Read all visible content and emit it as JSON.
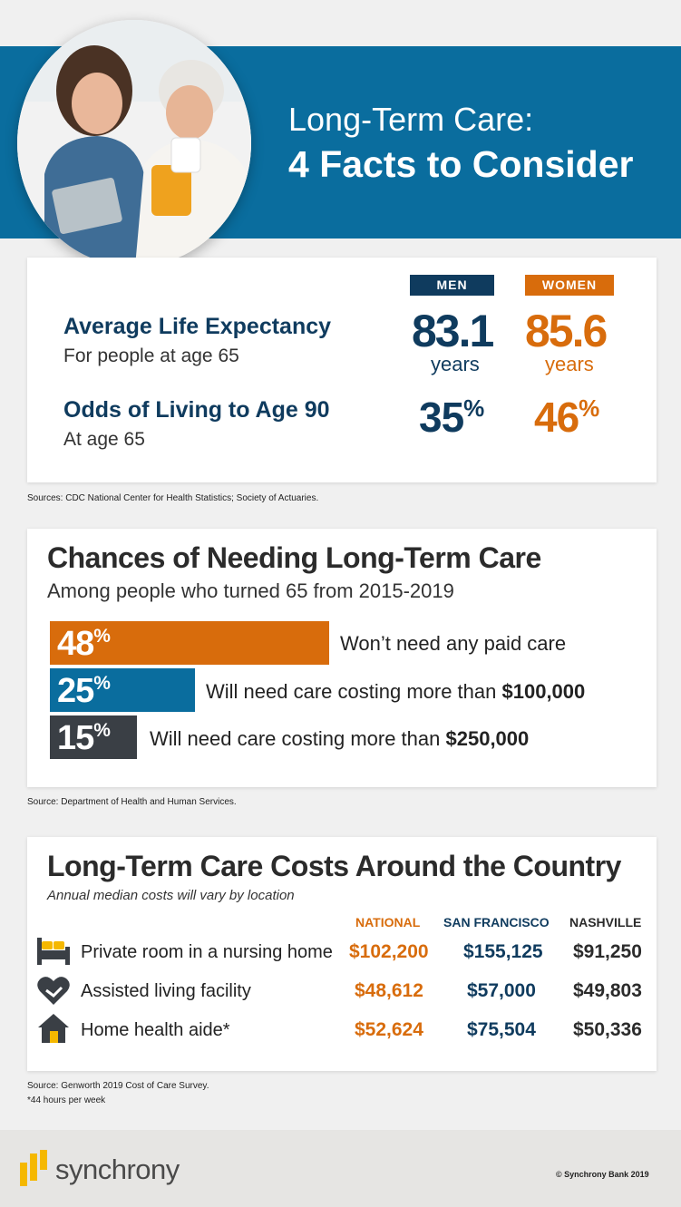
{
  "header": {
    "title_line1": "Long-Term Care:",
    "title_line2": "4 Facts to Consider"
  },
  "life": {
    "men_label": "MEN",
    "women_label": "WOMEN",
    "expectancy_title": "Average Life Expectancy",
    "expectancy_sub": "For people at age 65",
    "men_expectancy": "83.1",
    "women_expectancy": "85.6",
    "years_label": "years",
    "odds_title": "Odds of Living to Age 90",
    "odds_sub": "At age 65",
    "men_odds": "35",
    "women_odds": "46",
    "percent_sign": "%",
    "source": "Sources: CDC National Center for Health Statistics; Society of Actuaries."
  },
  "chances": {
    "title": "Chances of Needing Long-Term Care",
    "subtitle": "Among people who turned 65 from 2015-2019",
    "bars": [
      {
        "value": "48",
        "text": "Won’t need any paid care",
        "amount": "",
        "color": "#d86c0c"
      },
      {
        "value": "25",
        "text": "Will need care costing more than ",
        "amount": "$100,000",
        "color": "#0a6d9e"
      },
      {
        "value": "15",
        "text": "Will need care costing more than ",
        "amount": "$250,000",
        "color": "#3a3f45"
      }
    ],
    "source": "Source: Department of Health and Human Services."
  },
  "costs": {
    "title": "Long-Term Care Costs Around the Country",
    "subtitle": "Annual median costs will vary by location",
    "columns": [
      "NATIONAL",
      "SAN FRANCISCO",
      "NASHVILLE"
    ],
    "rows": [
      {
        "icon": "bed-icon",
        "label": "Private room in a nursing home",
        "national": "$102,200",
        "sf": "$155,125",
        "nashville": "$91,250"
      },
      {
        "icon": "heart-hands-icon",
        "label": "Assisted living facility",
        "national": "$48,612",
        "sf": "$57,000",
        "nashville": "$49,803"
      },
      {
        "icon": "house-icon",
        "label": "Home health aide*",
        "national": "$52,624",
        "sf": "$75,504",
        "nashville": "$50,336"
      }
    ],
    "source": "Source: Genworth 2019 Cost of Care Survey.",
    "footnote": "*44 hours per week"
  },
  "footer": {
    "logo": "synchrony",
    "copyright": "© Synchrony Bank 2019"
  },
  "colors": {
    "brand_blue": "#0a6d9e",
    "navy": "#0f3b5e",
    "orange": "#d86c0c",
    "dark": "#3a3f45",
    "logo_yellow": "#f5b800"
  }
}
